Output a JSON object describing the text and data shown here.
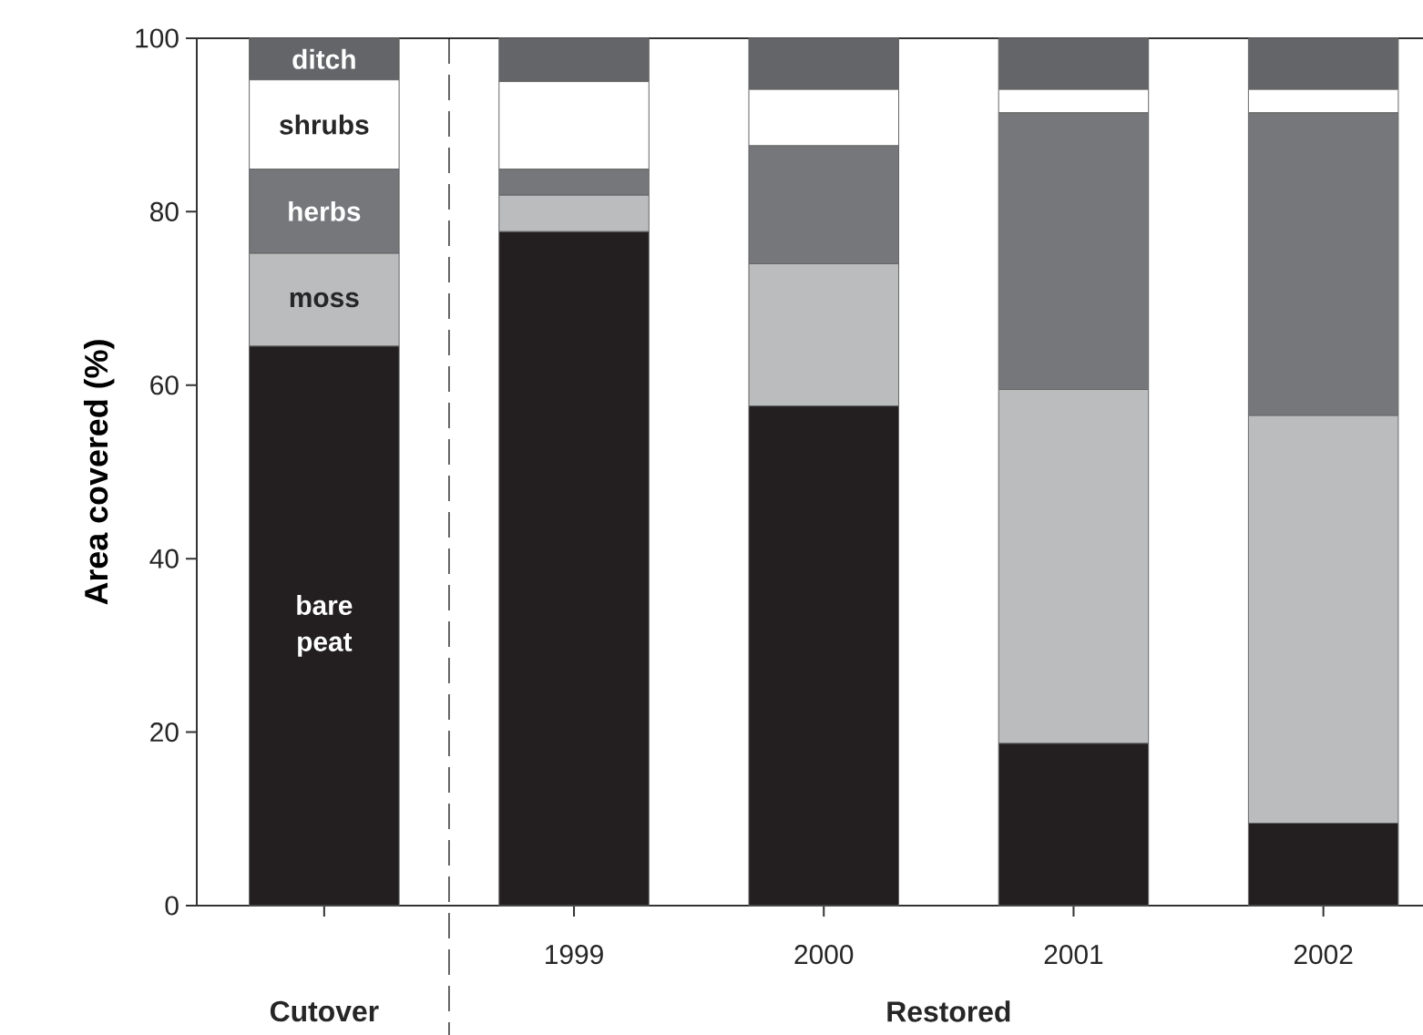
{
  "chart_data": {
    "type": "bar",
    "stacked": true,
    "ylabel": "Area covered (%)",
    "categories": [
      null,
      "1999",
      "2000",
      "2001",
      "2002"
    ],
    "series": [
      {
        "name": "bare peat",
        "color": "#231f20",
        "values": [
          64.5,
          77.7,
          57.6,
          18.7,
          9.5
        ]
      },
      {
        "name": "moss",
        "color": "#bbbcbe",
        "values": [
          10.7,
          4.2,
          16.4,
          40.8,
          47.0
        ]
      },
      {
        "name": "herbs",
        "color": "#76777b",
        "values": [
          9.7,
          3.0,
          13.6,
          31.9,
          34.9
        ]
      },
      {
        "name": "shrubs",
        "color": "#ffffff",
        "values": [
          10.3,
          10.1,
          6.5,
          2.7,
          2.7
        ]
      },
      {
        "name": "ditch",
        "color": "#646569",
        "values": [
          4.8,
          5.0,
          5.9,
          5.9,
          5.9
        ]
      }
    ],
    "ylim": [
      0,
      100
    ],
    "yticks": [
      0,
      20,
      40,
      60,
      80,
      100
    ],
    "annotations": [
      "Cutover",
      "Restored"
    ]
  }
}
